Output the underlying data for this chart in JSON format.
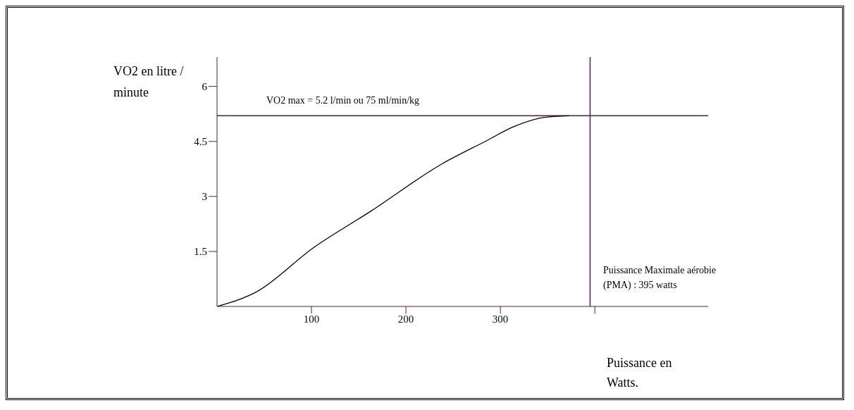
{
  "chart_data": {
    "type": "line",
    "xlabel": "Puissance en Watts.",
    "ylabel": "VO2 en litre / minute",
    "x": [
      0,
      42,
      102,
      163,
      239,
      284,
      314,
      345,
      373
    ],
    "series": [
      {
        "color": "#000000",
        "values": [
          0,
          0.4,
          1.6,
          2.6,
          3.9,
          4.5,
          4.9,
          5.15,
          5.2
        ]
      }
    ],
    "xlim": [
      0,
      520
    ],
    "xticks": [
      100,
      200,
      300,
      {
        "value": 400,
        "label": null
      }
    ],
    "ylim": [
      0,
      6.8
    ],
    "yticks": [
      1.5,
      3,
      4.5,
      6
    ],
    "ref_lines": [
      {
        "axis": "y",
        "value": 5.2,
        "label": "VO2 max = 5.2 l/min ou 75 ml/min/kg",
        "color": "#5b1a5b"
      },
      {
        "axis": "x",
        "value": 395,
        "label": "Puissance Maximale aérobie  (PMA) : 395 watts",
        "color": "#5b1a5b"
      }
    ],
    "grid": false,
    "legend": false,
    "marker": "none",
    "line_style": "solid"
  }
}
